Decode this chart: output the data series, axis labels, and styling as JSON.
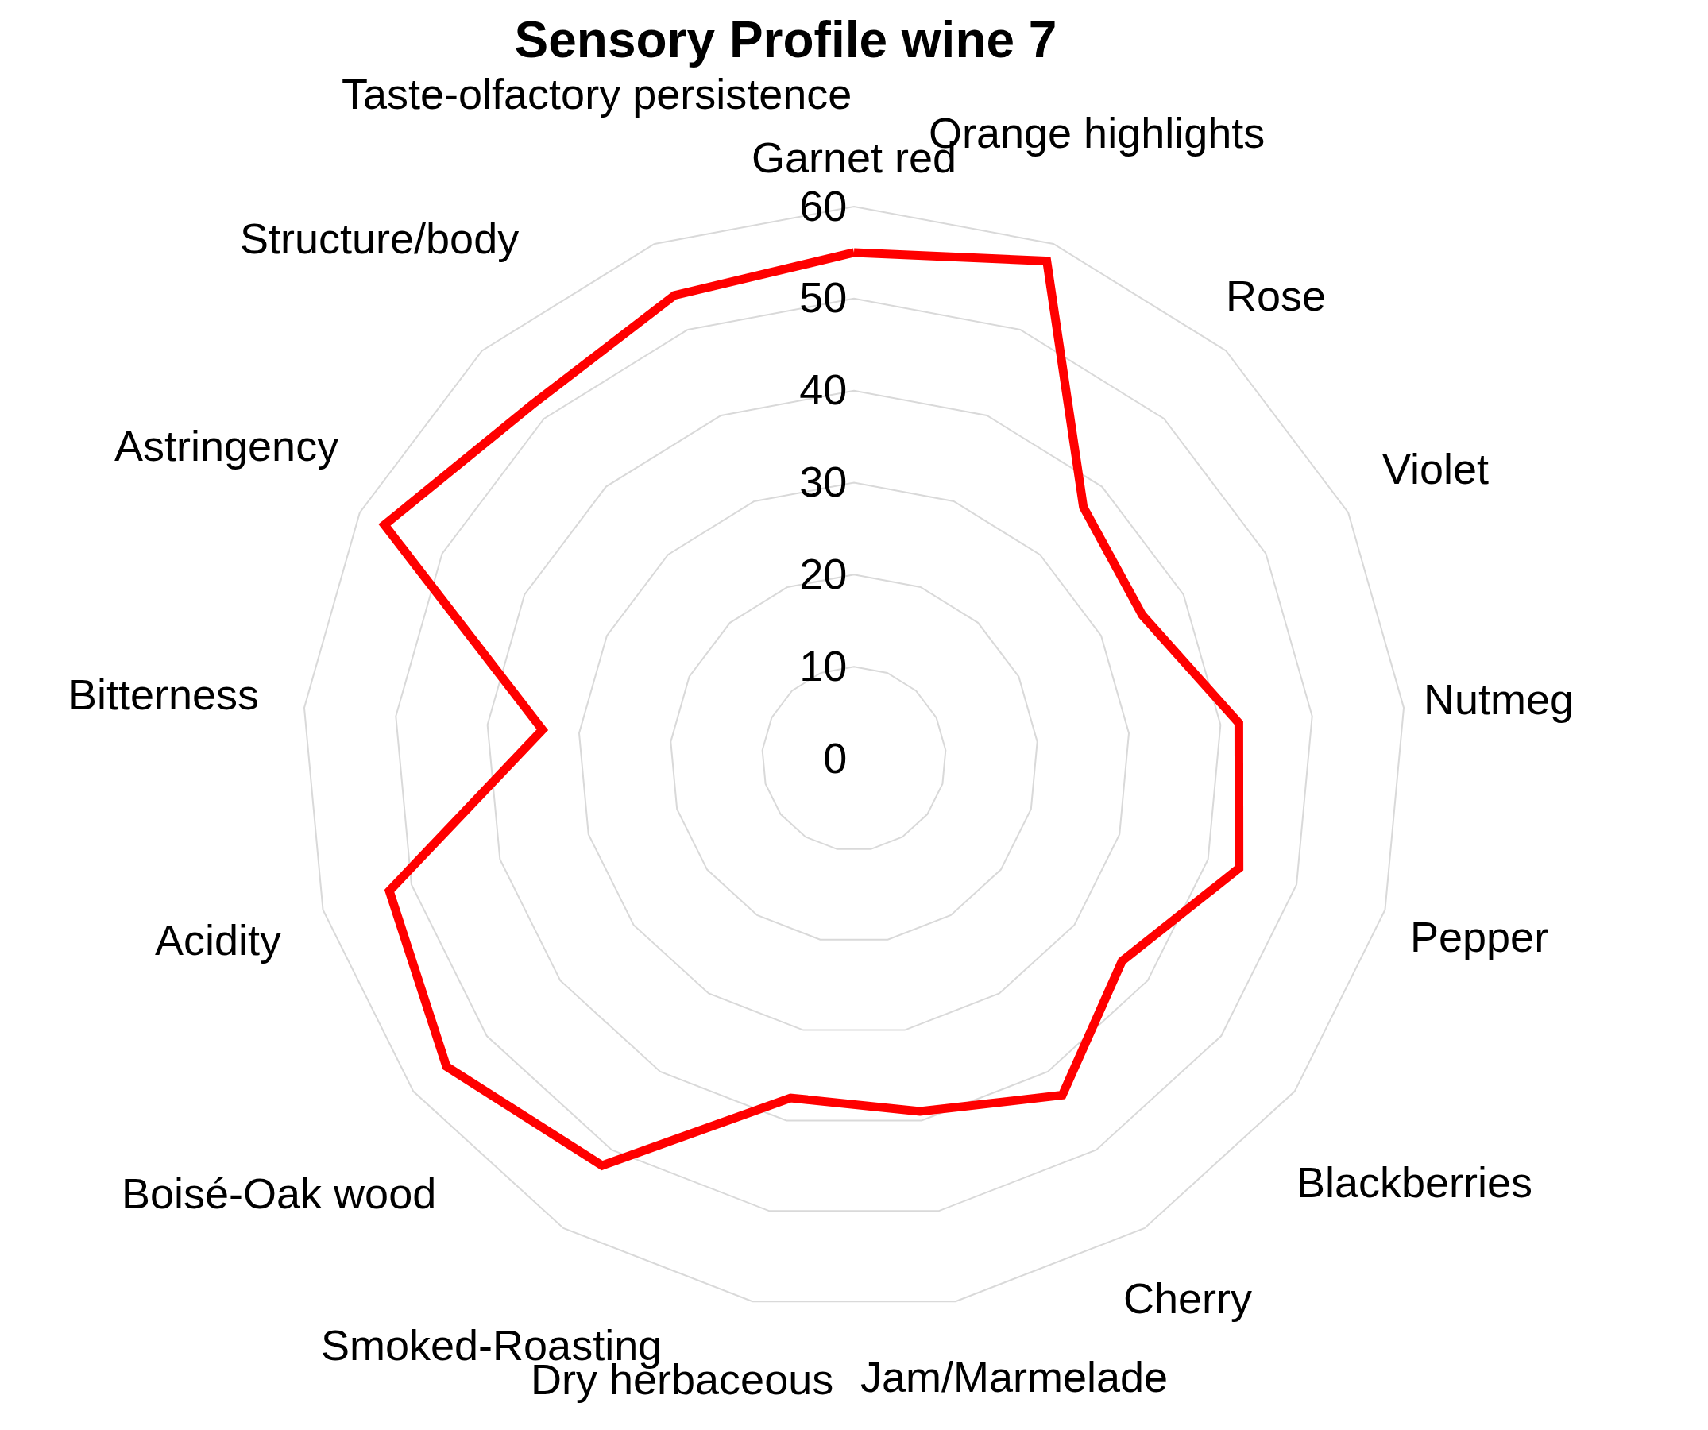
{
  "chart_data": {
    "type": "radar",
    "title": "Sensory Profile wine 7",
    "categories": [
      "Garnet red",
      "Orange highlights",
      "Rose",
      "Violet",
      "Nutmeg",
      "Pepper",
      "Blackberries",
      "Cherry",
      "Jam/Marmelade",
      "Dry herbaceous",
      "Smoked-Roasting",
      "Boisé-Oak wood",
      "Acidity",
      "Bitterness",
      "Astringency",
      "Structure/body",
      "Taste-olfactory persistence"
    ],
    "series": [
      {
        "color": "#ff0000",
        "values": [
          55,
          58,
          37,
          35,
          42,
          43.5,
          36.5,
          43,
          39,
          37.5,
          52,
          55.5,
          52.5,
          34,
          57,
          52,
          54
        ]
      }
    ],
    "ylim": [
      0,
      60
    ],
    "yticks": [
      0,
      10,
      20,
      30,
      40,
      50,
      60
    ],
    "grid": true,
    "marker": "none",
    "line_style": "solid"
  }
}
